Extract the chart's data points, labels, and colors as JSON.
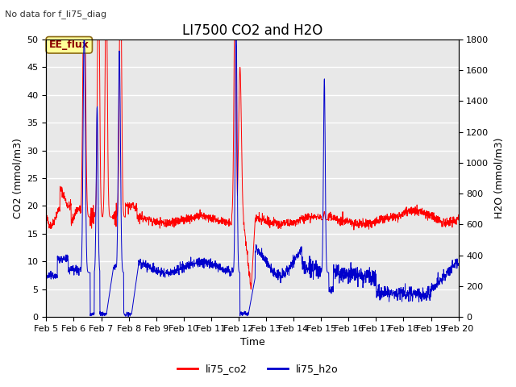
{
  "title": "LI7500 CO2 and H2O",
  "top_left_text": "No data for f_li75_diag",
  "xlabel": "Time",
  "ylabel_left": "CO2 (mmol/m3)",
  "ylabel_right": "H2O (mmol/m3)",
  "ylim_left": [
    0,
    50
  ],
  "ylim_right": [
    0,
    1800
  ],
  "yticks_left": [
    0,
    5,
    10,
    15,
    20,
    25,
    30,
    35,
    40,
    45,
    50
  ],
  "yticks_right": [
    0,
    200,
    400,
    600,
    800,
    1000,
    1200,
    1400,
    1600,
    1800
  ],
  "xtick_labels": [
    "Feb 5",
    "Feb 6",
    "Feb 7",
    "Feb 8",
    "Feb 9",
    "Feb 10",
    "Feb 11",
    "Feb 12",
    "Feb 13",
    "Feb 14",
    "Feb 15",
    "Feb 16",
    "Feb 17",
    "Feb 18",
    "Feb 19",
    "Feb 20"
  ],
  "xtick_positions": [
    5,
    6,
    7,
    8,
    9,
    10,
    11,
    12,
    13,
    14,
    15,
    16,
    17,
    18,
    19,
    20
  ],
  "color_co2": "#FF0000",
  "color_h2o": "#0000CC",
  "legend_label_co2": "li75_co2",
  "legend_label_h2o": "li75_h2o",
  "ee_flux_label": "EE_flux",
  "plot_bg_color": "#E8E8E8",
  "grid_color": "#FFFFFF",
  "title_fontsize": 12,
  "label_fontsize": 9,
  "tick_fontsize": 8,
  "h2o_scale": 36,
  "linewidth_co2": 0.7,
  "linewidth_h2o": 0.7
}
